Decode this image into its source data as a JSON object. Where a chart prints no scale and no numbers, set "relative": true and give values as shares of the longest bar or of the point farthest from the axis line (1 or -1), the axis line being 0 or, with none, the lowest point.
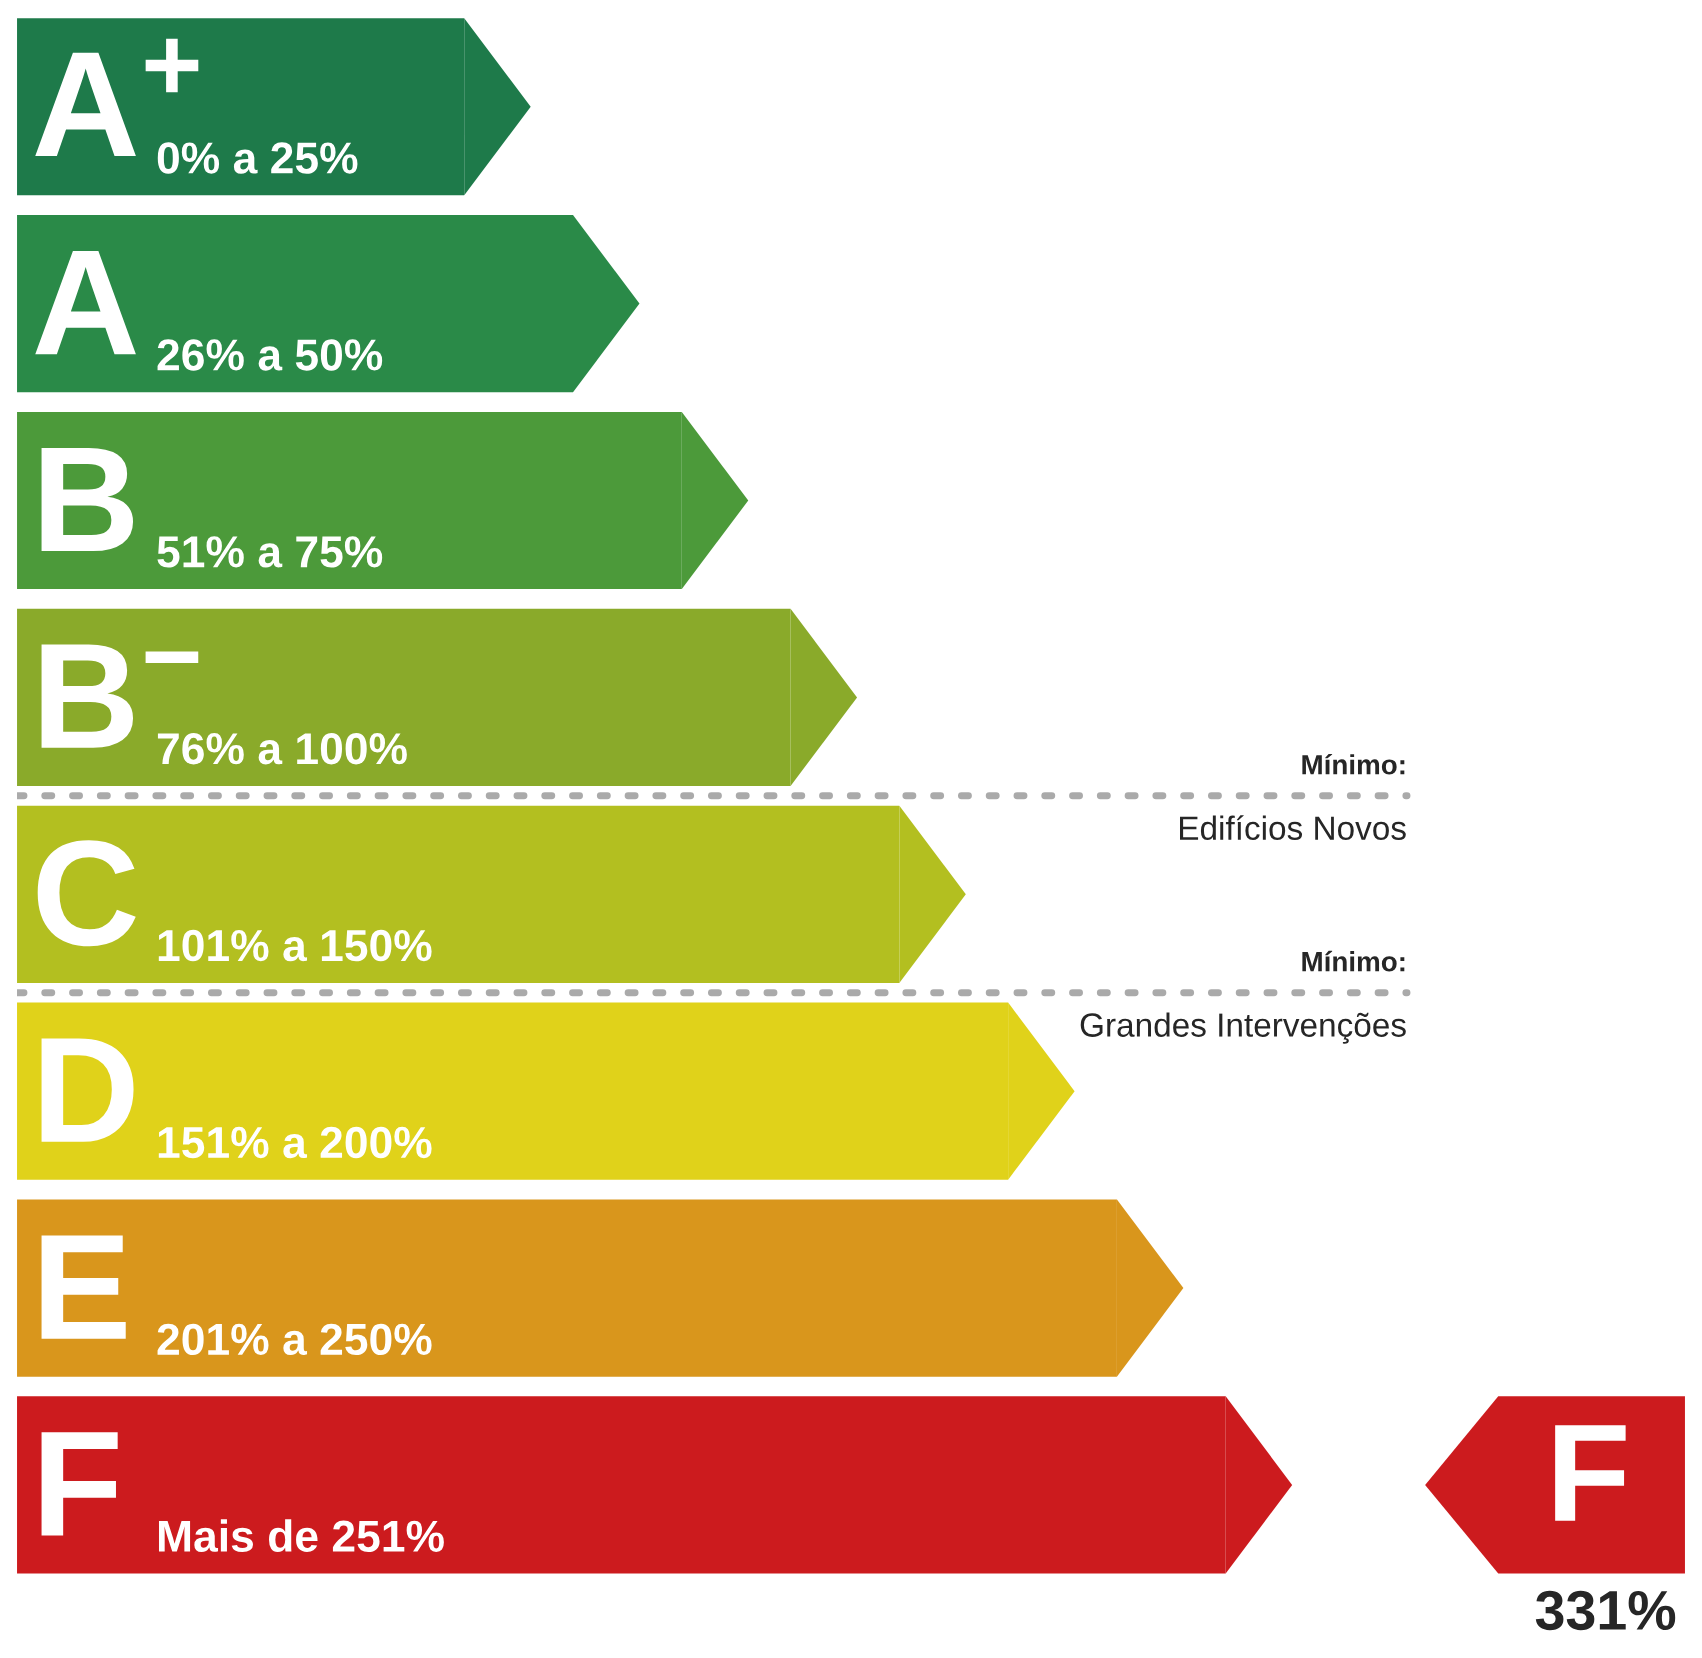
{
  "chart_data": {
    "type": "bar",
    "orientation": "horizontal",
    "relative": true,
    "categories": [
      "A$^{+}$",
      "A",
      "B",
      "B$^{−}$",
      "C",
      "D",
      "E",
      "F"
    ],
    "values": [
      0.37,
      0.46,
      0.55,
      0.64,
      0.73,
      0.82,
      0.91,
      1.0
    ],
    "colors": [
      "#1e7a4a",
      "#2a8a48",
      "#4c9a3a",
      "#8aaa2a",
      "#b3bf20",
      "#e0d21a",
      "#d9961c",
      "#cc1b1e"
    ],
    "annotations": [
      "0% a 25%",
      "26% a 50%",
      "51% a 75%",
      "76% a 100%",
      "101% a 150%",
      "151% a 200%",
      "201% a 250%",
      "Mais de 251%",
      "Mínimo:",
      "Edifícios Novos",
      "Mínimo:",
      "Grandes Intervenções",
      "F",
      "331%"
    ]
  }
}
